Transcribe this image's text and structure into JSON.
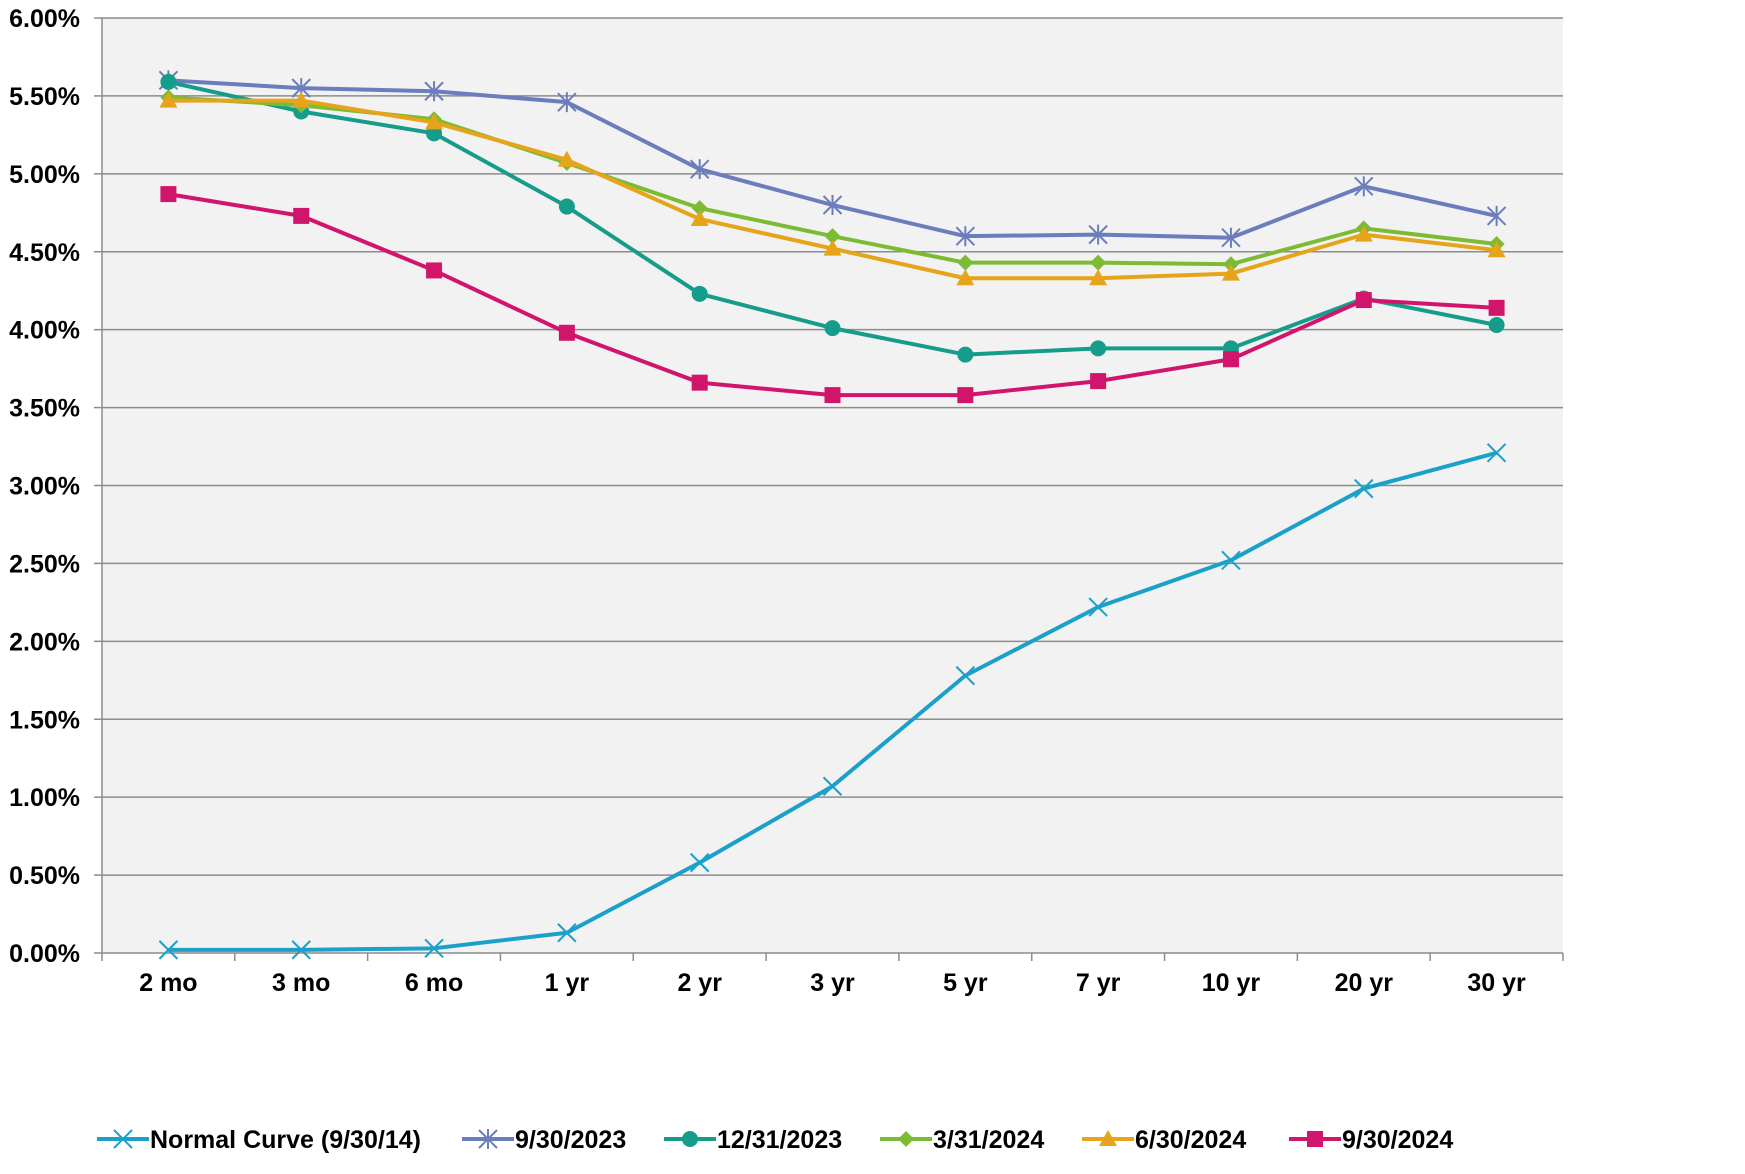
{
  "chart_data": {
    "type": "line",
    "title": "",
    "xlabel": "",
    "ylabel": "",
    "categories": [
      "2 mo",
      "3 mo",
      "6 mo",
      "1 yr",
      "2 yr",
      "3 yr",
      "5 yr",
      "7 yr",
      "10 yr",
      "20 yr",
      "30 yr"
    ],
    "ylim": [
      0,
      6
    ],
    "yticks": [
      "0.00%",
      "0.50%",
      "1.00%",
      "1.50%",
      "2.00%",
      "2.50%",
      "3.00%",
      "3.50%",
      "4.00%",
      "4.50%",
      "5.00%",
      "5.50%",
      "6.00%"
    ],
    "grid": true,
    "legend_position": "bottom",
    "plot_background": "#F2F2F2",
    "series": [
      {
        "name": "Normal Curve (9/30/14)",
        "color": "#1BA1C9",
        "marker": "x",
        "values": [
          0.02,
          0.02,
          0.03,
          0.13,
          0.58,
          1.07,
          1.78,
          2.22,
          2.52,
          2.98,
          3.21
        ]
      },
      {
        "name": "9/30/2023",
        "color": "#6B7DBD",
        "marker": "star",
        "values": [
          5.6,
          5.55,
          5.53,
          5.46,
          5.03,
          4.8,
          4.6,
          4.61,
          4.59,
          4.92,
          4.73
        ]
      },
      {
        "name": "12/31/2023",
        "color": "#169C8A",
        "marker": "circle",
        "values": [
          5.59,
          5.4,
          5.26,
          4.79,
          4.23,
          4.01,
          3.84,
          3.88,
          3.88,
          4.2,
          4.03
        ]
      },
      {
        "name": "3/31/2024",
        "color": "#7DBB35",
        "marker": "diamond",
        "values": [
          5.49,
          5.44,
          5.35,
          5.07,
          4.78,
          4.6,
          4.43,
          4.43,
          4.42,
          4.65,
          4.55
        ]
      },
      {
        "name": "6/30/2024",
        "color": "#E5A41A",
        "marker": "triangle",
        "values": [
          5.47,
          5.47,
          5.33,
          5.09,
          4.71,
          4.52,
          4.33,
          4.33,
          4.36,
          4.61,
          4.51
        ]
      },
      {
        "name": "9/30/2024",
        "color": "#D2156C",
        "marker": "square",
        "values": [
          4.87,
          4.73,
          4.38,
          3.98,
          3.66,
          3.58,
          3.58,
          3.67,
          3.81,
          4.19,
          4.14
        ]
      }
    ]
  }
}
